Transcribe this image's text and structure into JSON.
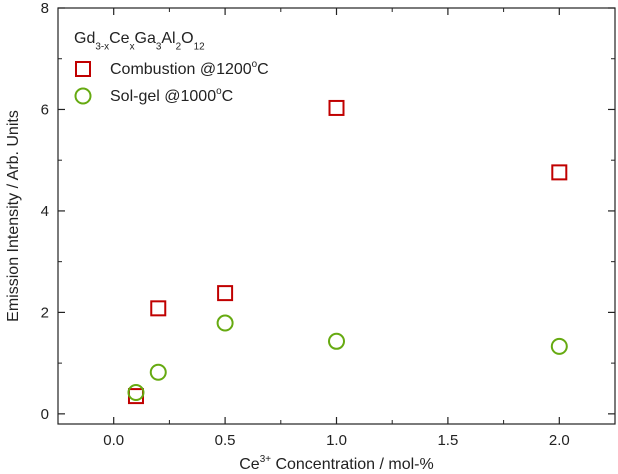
{
  "chart_data": {
    "type": "scatter",
    "title": "",
    "legend_position": "top-left",
    "legend_title": {
      "parts": [
        {
          "text": "Gd",
          "style": "normal"
        },
        {
          "text": "3-x",
          "style": "sub"
        },
        {
          "text": "Ce",
          "style": "normal"
        },
        {
          "text": "x",
          "style": "sub"
        },
        {
          "text": "Ga",
          "style": "normal"
        },
        {
          "text": "3",
          "style": "sub"
        },
        {
          "text": "Al",
          "style": "normal"
        },
        {
          "text": "2",
          "style": "sub"
        },
        {
          "text": "O",
          "style": "normal"
        },
        {
          "text": "12",
          "style": "sub"
        }
      ]
    },
    "xlabel": {
      "parts": [
        {
          "text": "Ce",
          "style": "normal"
        },
        {
          "text": "3+",
          "style": "sup"
        },
        {
          "text": " Concentration / mol-%",
          "style": "normal"
        }
      ]
    },
    "ylabel": "Emission Intensity / Arb. Units",
    "xlim": [
      -0.25,
      2.25
    ],
    "ylim": [
      -0.2,
      8
    ],
    "xticks": [
      0.0,
      0.5,
      1.0,
      1.5,
      2.0
    ],
    "xtick_labels": [
      "0.0",
      "0.5",
      "1.0",
      "1.5",
      "2.0"
    ],
    "yticks": [
      0,
      2,
      4,
      6,
      8
    ],
    "ytick_labels": [
      "0",
      "2",
      "4",
      "6",
      "8"
    ],
    "grid": false,
    "series": [
      {
        "name": {
          "parts": [
            {
              "text": "Combustion @1200",
              "style": "normal"
            },
            {
              "text": "o",
              "style": "sup"
            },
            {
              "text": "C",
              "style": "normal"
            }
          ]
        },
        "marker": "square",
        "color": "#c00000",
        "x": [
          0.1,
          0.2,
          0.5,
          1.0,
          2.0
        ],
        "y": [
          0.35,
          2.08,
          2.38,
          6.03,
          4.76
        ]
      },
      {
        "name": {
          "parts": [
            {
              "text": "Sol-gel @1000",
              "style": "normal"
            },
            {
              "text": "o",
              "style": "sup"
            },
            {
              "text": "C",
              "style": "normal"
            }
          ]
        },
        "marker": "circle",
        "color": "#66aa11",
        "x": [
          0.1,
          0.2,
          0.5,
          1.0,
          2.0
        ],
        "y": [
          0.42,
          0.82,
          1.79,
          1.43,
          1.33
        ]
      }
    ]
  }
}
